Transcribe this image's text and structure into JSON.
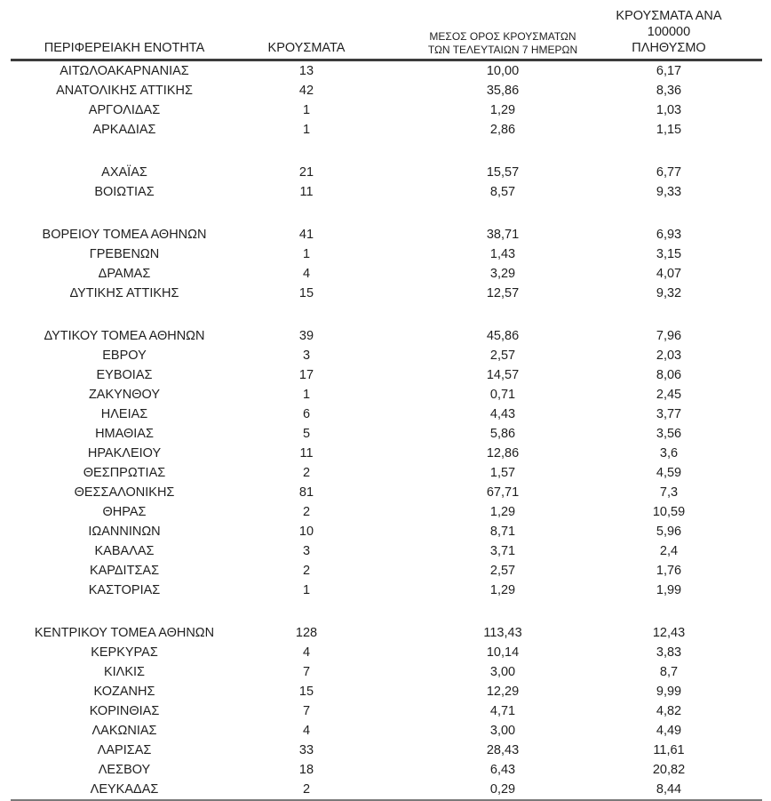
{
  "page": {
    "background_color": "#ffffff",
    "text_color": "#1f1f1f",
    "header_rule_color": "#3c3c3c",
    "bottom_rule_color": "#7a7a7a"
  },
  "table": {
    "headers": {
      "region": "ΠΕΡΙΦΕΡΕΙΑΚΗ ΕΝΟΤΗΤΑ",
      "cases": "ΚΡΟΥΣΜΑΤΑ",
      "avg7_line1": "ΜΕΣΟΣ ΟΡΟΣ ΚΡΟΥΣΜΑΤΩΝ",
      "avg7_line2": "ΤΩΝ ΤΕΛΕΥΤΑΙΩΝ 7 ΗΜΕΡΩΝ",
      "per100k_line1": "ΚΡΟΥΣΜΑΤΑ ΑΝΑ 100000",
      "per100k_line2": "ΠΛΗΘΥΣΜΟ"
    },
    "rows": [
      {
        "region": "ΑΙΤΩΛΟΑΚΑΡΝΑΝΙΑΣ",
        "cases": "13",
        "avg7": "10,00",
        "per100k": "6,17"
      },
      {
        "region": "ΑΝΑΤΟΛΙΚΗΣ ΑΤΤΙΚΗΣ",
        "cases": "42",
        "avg7": "35,86",
        "per100k": "8,36"
      },
      {
        "region": "ΑΡΓΟΛΙΔΑΣ",
        "cases": "1",
        "avg7": "1,29",
        "per100k": "1,03"
      },
      {
        "region": "ΑΡΚΑΔΙΑΣ",
        "cases": "1",
        "avg7": "2,86",
        "per100k": "1,15"
      },
      {
        "blank": true
      },
      {
        "region": "ΑΧΑΪΑΣ",
        "cases": "21",
        "avg7": "15,57",
        "per100k": "6,77"
      },
      {
        "region": "ΒΟΙΩΤΙΑΣ",
        "cases": "11",
        "avg7": "8,57",
        "per100k": "9,33"
      },
      {
        "blank": true
      },
      {
        "region": "ΒΟΡΕΙΟΥ ΤΟΜΕΑ ΑΘΗΝΩΝ",
        "cases": "41",
        "avg7": "38,71",
        "per100k": "6,93"
      },
      {
        "region": "ΓΡΕΒΕΝΩΝ",
        "cases": "1",
        "avg7": "1,43",
        "per100k": "3,15"
      },
      {
        "region": "ΔΡΑΜΑΣ",
        "cases": "4",
        "avg7": "3,29",
        "per100k": "4,07"
      },
      {
        "region": "ΔΥΤΙΚΗΣ ΑΤΤΙΚΗΣ",
        "cases": "15",
        "avg7": "12,57",
        "per100k": "9,32"
      },
      {
        "blank": true
      },
      {
        "region": "ΔΥΤΙΚΟΥ ΤΟΜΕΑ ΑΘΗΝΩΝ",
        "cases": "39",
        "avg7": "45,86",
        "per100k": "7,96"
      },
      {
        "region": "ΕΒΡΟΥ",
        "cases": "3",
        "avg7": "2,57",
        "per100k": "2,03"
      },
      {
        "region": "ΕΥΒΟΙΑΣ",
        "cases": "17",
        "avg7": "14,57",
        "per100k": "8,06"
      },
      {
        "region": "ΖΑΚΥΝΘΟΥ",
        "cases": "1",
        "avg7": "0,71",
        "per100k": "2,45"
      },
      {
        "region": "ΗΛΕΙΑΣ",
        "cases": "6",
        "avg7": "4,43",
        "per100k": "3,77"
      },
      {
        "region": "ΗΜΑΘΙΑΣ",
        "cases": "5",
        "avg7": "5,86",
        "per100k": "3,56"
      },
      {
        "region": "ΗΡΑΚΛΕΙΟΥ",
        "cases": "11",
        "avg7": "12,86",
        "per100k": "3,6"
      },
      {
        "region": "ΘΕΣΠΡΩΤΙΑΣ",
        "cases": "2",
        "avg7": "1,57",
        "per100k": "4,59"
      },
      {
        "region": "ΘΕΣΣΑΛΟΝΙΚΗΣ",
        "cases": "81",
        "avg7": "67,71",
        "per100k": "7,3"
      },
      {
        "region": "ΘΗΡΑΣ",
        "cases": "2",
        "avg7": "1,29",
        "per100k": "10,59"
      },
      {
        "region": "ΙΩΑΝΝΙΝΩΝ",
        "cases": "10",
        "avg7": "8,71",
        "per100k": "5,96"
      },
      {
        "region": "ΚΑΒΑΛΑΣ",
        "cases": "3",
        "avg7": "3,71",
        "per100k": "2,4"
      },
      {
        "region": "ΚΑΡΔΙΤΣΑΣ",
        "cases": "2",
        "avg7": "2,57",
        "per100k": "1,76"
      },
      {
        "region": "ΚΑΣΤΟΡΙΑΣ",
        "cases": "1",
        "avg7": "1,29",
        "per100k": "1,99"
      },
      {
        "blank": true
      },
      {
        "region": "ΚΕΝΤΡΙΚΟΥ ΤΟΜΕΑ ΑΘΗΝΩΝ",
        "cases": "128",
        "avg7": "113,43",
        "per100k": "12,43"
      },
      {
        "region": "ΚΕΡΚΥΡΑΣ",
        "cases": "4",
        "avg7": "10,14",
        "per100k": "3,83"
      },
      {
        "region": "ΚΙΛΚΙΣ",
        "cases": "7",
        "avg7": "3,00",
        "per100k": "8,7"
      },
      {
        "region": "ΚΟΖΑΝΗΣ",
        "cases": "15",
        "avg7": "12,29",
        "per100k": "9,99"
      },
      {
        "region": "ΚΟΡΙΝΘΙΑΣ",
        "cases": "7",
        "avg7": "4,71",
        "per100k": "4,82"
      },
      {
        "region": "ΛΑΚΩΝΙΑΣ",
        "cases": "4",
        "avg7": "3,00",
        "per100k": "4,49"
      },
      {
        "region": "ΛΑΡΙΣΑΣ",
        "cases": "33",
        "avg7": "28,43",
        "per100k": "11,61"
      },
      {
        "region": "ΛΕΣΒΟΥ",
        "cases": "18",
        "avg7": "6,43",
        "per100k": "20,82"
      },
      {
        "region": "ΛΕΥΚΑΔΑΣ",
        "cases": "2",
        "avg7": "0,29",
        "per100k": "8,44"
      }
    ]
  }
}
